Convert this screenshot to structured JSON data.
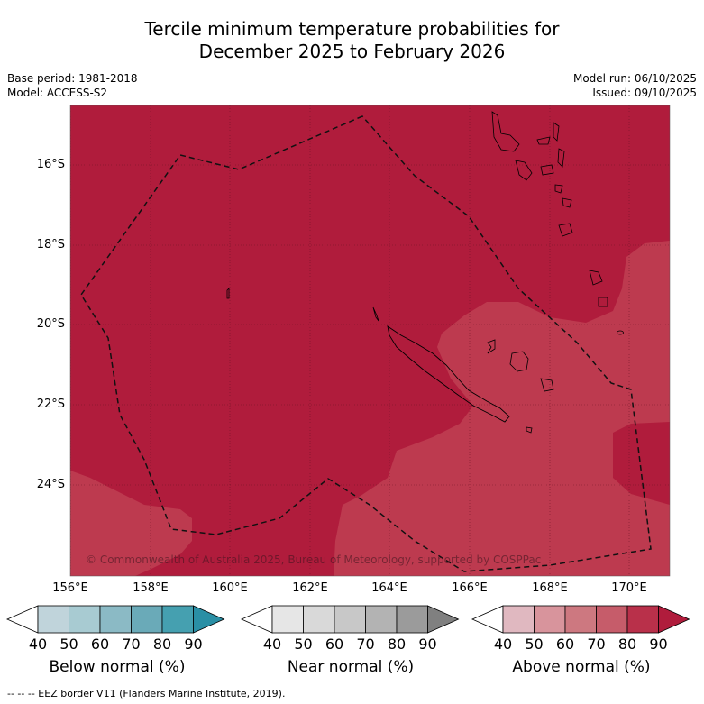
{
  "title_line1": "Tercile minimum temperature probabilities for",
  "title_line2": "December 2025 to February 2026",
  "base_period": "Base period: 1981-2018",
  "model": "Model: ACCESS-S2",
  "model_run": "Model run: 06/10/2025",
  "issued": "Issued: 09/10/2025",
  "lat_labels": [
    "16°S",
    "18°S",
    "20°S",
    "22°S",
    "24°S"
  ],
  "lon_labels": [
    "156°E",
    "158°E",
    "160°E",
    "162°E",
    "164°E",
    "166°E",
    "168°E",
    "170°E"
  ],
  "copyright": "© Commonwealth of Australia 2025, Bureau of Meteorology, supported by COSPPac",
  "colorbars": [
    {
      "title": "Below normal (%)",
      "ticks": [
        "40",
        "50",
        "60",
        "70",
        "80",
        "90"
      ],
      "colors": [
        "#ffffff",
        "#c0d4db",
        "#a8cbd2",
        "#8bbac5",
        "#6aaab8",
        "#45a0b0",
        "#2a8fa5"
      ]
    },
    {
      "title": "Near normal (%)",
      "ticks": [
        "40",
        "50",
        "60",
        "70",
        "80",
        "90"
      ],
      "colors": [
        "#ffffff",
        "#e6e6e6",
        "#d9d9d9",
        "#c8c8c8",
        "#b3b3b3",
        "#9b9b9b",
        "#808080"
      ]
    },
    {
      "title": "Above normal (%)",
      "ticks": [
        "40",
        "50",
        "60",
        "70",
        "80",
        "90"
      ],
      "colors": [
        "#ffffff",
        "#e0b8c0",
        "#d8949c",
        "#cd7880",
        "#c65c6a",
        "#b9304a",
        "#b01c3c"
      ]
    }
  ],
  "footnote": "--  --  -- EEZ border V11 (Flanders Marine Institute, 2019).",
  "map_colors": {
    "dark": "#b01c3c",
    "medium": "#bd3a4f"
  }
}
